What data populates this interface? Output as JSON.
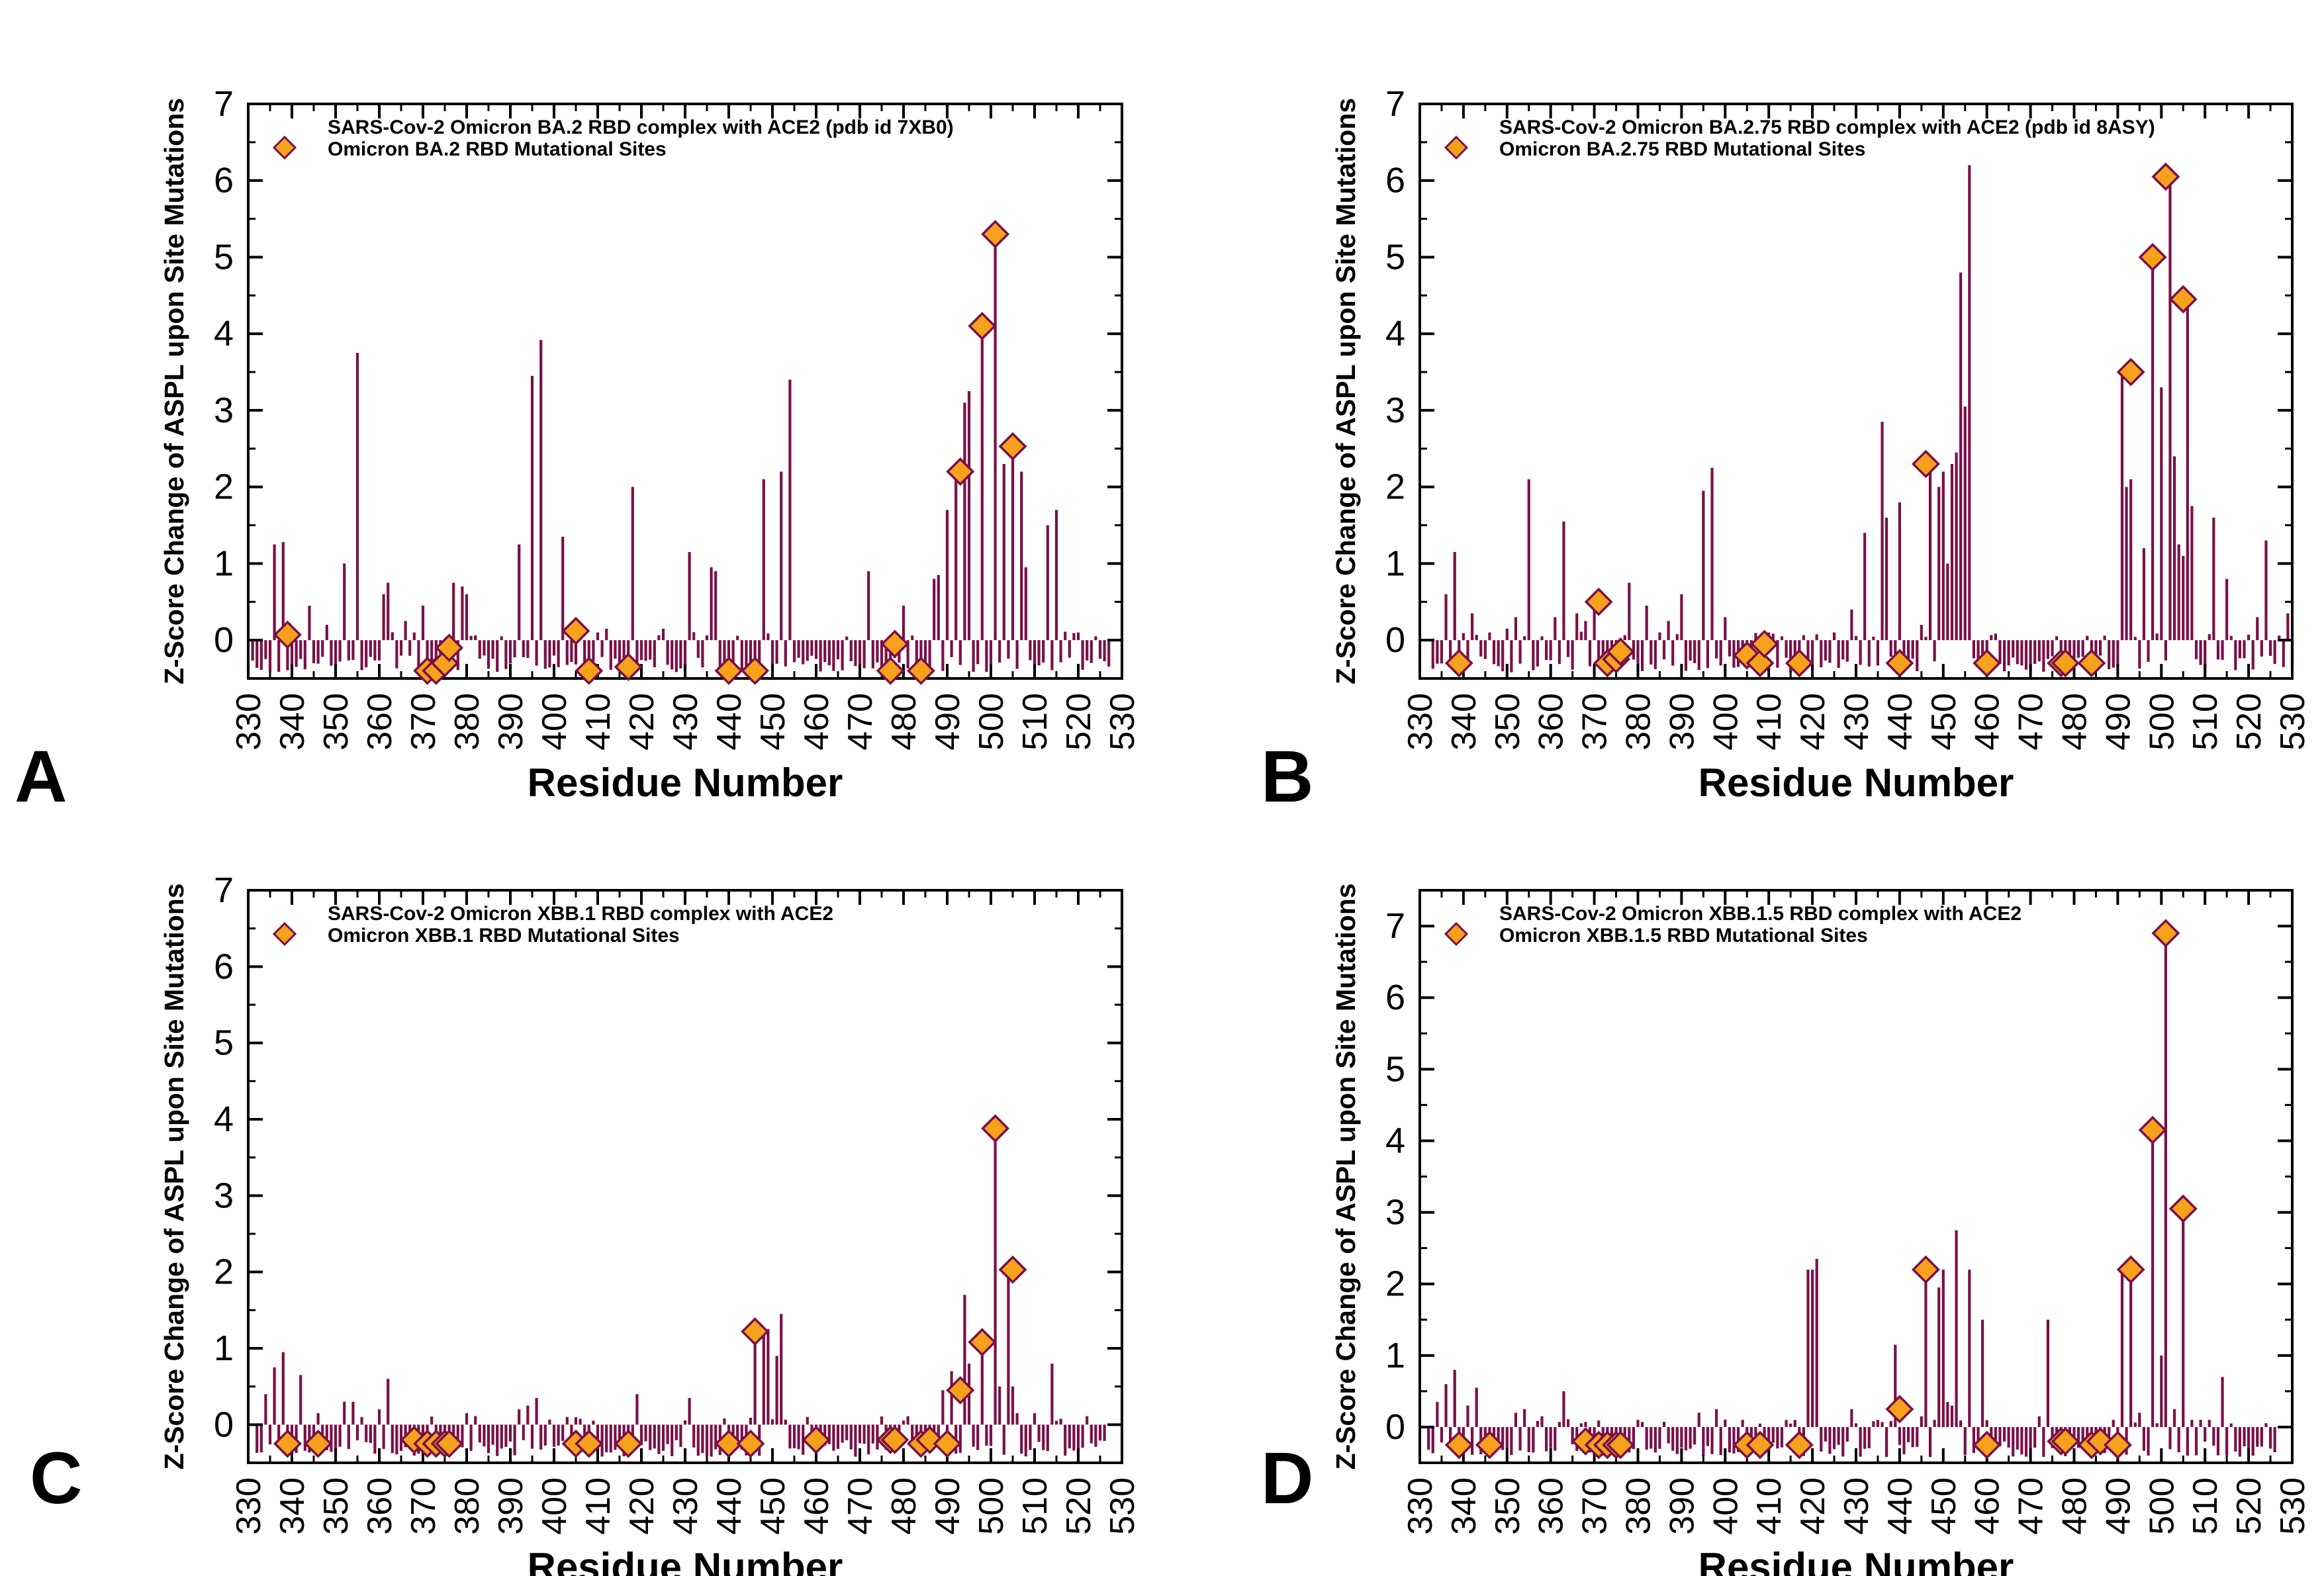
{
  "panel_labels": [
    "A",
    "B",
    "C",
    "D"
  ],
  "colors": {
    "stem": "#7a1048",
    "marker_fill": "#f5a11c",
    "marker_edge": "#7a1048",
    "axis": "#000000"
  },
  "chart_data": [
    {
      "panel": "A",
      "type": "bar",
      "title": "",
      "xlabel": "Residue Number",
      "ylabel": "Z-Score Change of ASPL upon Site Mutations",
      "xlim": [
        330,
        530
      ],
      "ylim": [
        -0.5,
        7
      ],
      "xticks": [
        330,
        340,
        350,
        360,
        370,
        380,
        390,
        400,
        410,
        420,
        430,
        440,
        450,
        460,
        470,
        480,
        490,
        500,
        510,
        520,
        530
      ],
      "yticks": [
        0,
        1,
        2,
        3,
        4,
        5,
        6,
        7
      ],
      "legend": [
        "SARS-Cov-2  Omicron BA.2 RBD complex with ACE2 (pdb id 7XB0)",
        "Omicron BA.2 RBD Mutational Sites"
      ],
      "legend_position": "top-left",
      "residue_range": [
        331,
        527
      ],
      "peaks": [
        [
          336,
          1.25
        ],
        [
          338,
          1.28
        ],
        [
          344,
          0.45
        ],
        [
          348,
          0.2
        ],
        [
          352,
          1.0
        ],
        [
          355,
          3.75
        ],
        [
          361,
          0.6
        ],
        [
          362,
          0.75
        ],
        [
          366,
          0.25
        ],
        [
          368,
          0.1
        ],
        [
          370,
          0.45
        ],
        [
          377,
          0.75
        ],
        [
          379,
          0.7
        ],
        [
          380,
          0.6
        ],
        [
          388,
          0.05
        ],
        [
          392,
          1.25
        ],
        [
          395,
          3.45
        ],
        [
          397,
          3.92
        ],
        [
          402,
          1.35
        ],
        [
          410,
          0.1
        ],
        [
          412,
          0.15
        ],
        [
          418,
          2.0
        ],
        [
          425,
          0.15
        ],
        [
          431,
          1.15
        ],
        [
          436,
          0.95
        ],
        [
          437,
          0.9
        ],
        [
          448,
          2.1
        ],
        [
          452,
          2.2
        ],
        [
          454,
          3.4
        ],
        [
          472,
          0.9
        ],
        [
          480,
          0.45
        ],
        [
          487,
          0.8
        ],
        [
          488,
          0.85
        ],
        [
          490,
          1.7
        ],
        [
          492,
          2.2
        ],
        [
          494,
          3.1
        ],
        [
          495,
          3.25
        ],
        [
          498,
          4.1
        ],
        [
          501,
          5.3
        ],
        [
          503,
          2.3
        ],
        [
          505,
          2.5
        ],
        [
          507,
          2.2
        ],
        [
          508,
          0.95
        ],
        [
          513,
          1.5
        ],
        [
          515,
          1.7
        ],
        [
          520,
          0.1
        ],
        [
          524,
          0.05
        ]
      ],
      "sites": [
        [
          339,
          0.07
        ],
        [
          371,
          -0.4
        ],
        [
          373,
          -0.4
        ],
        [
          375,
          -0.3
        ],
        [
          376,
          -0.1
        ],
        [
          405,
          0.12
        ],
        [
          408,
          -0.4
        ],
        [
          417,
          -0.35
        ],
        [
          440,
          -0.4
        ],
        [
          446,
          -0.4
        ],
        [
          477,
          -0.4
        ],
        [
          478,
          -0.05
        ],
        [
          484,
          -0.4
        ],
        [
          493,
          2.2
        ],
        [
          498,
          4.1
        ],
        [
          501,
          5.3
        ],
        [
          505,
          2.53
        ]
      ]
    },
    {
      "panel": "B",
      "type": "bar",
      "title": "",
      "xlabel": "Residue Number",
      "ylabel": "Z-Score Change of ASPL upon Site Mutations",
      "xlim": [
        330,
        530
      ],
      "ylim": [
        -0.5,
        7
      ],
      "xticks": [
        330,
        340,
        350,
        360,
        370,
        380,
        390,
        400,
        410,
        420,
        430,
        440,
        450,
        460,
        470,
        480,
        490,
        500,
        510,
        520,
        530
      ],
      "yticks": [
        0,
        1,
        2,
        3,
        4,
        5,
        6,
        7
      ],
      "legend": [
        "SARS-Cov-2  Omicron BA.2.75 RBD complex with ACE2 (pdb id 8ASY)",
        "Omicron BA.2.75 RBD Mutational Sites"
      ],
      "legend_position": "top-left",
      "residue_range": [
        333,
        530
      ],
      "peaks": [
        [
          336,
          0.6
        ],
        [
          338,
          1.15
        ],
        [
          342,
          0.35
        ],
        [
          346,
          0.1
        ],
        [
          350,
          0.15
        ],
        [
          352,
          0.3
        ],
        [
          355,
          2.1
        ],
        [
          358,
          0.05
        ],
        [
          361,
          0.3
        ],
        [
          363,
          1.55
        ],
        [
          366,
          0.35
        ],
        [
          368,
          0.25
        ],
        [
          370,
          0.6
        ],
        [
          378,
          0.75
        ],
        [
          382,
          0.45
        ],
        [
          385,
          0.1
        ],
        [
          387,
          0.25
        ],
        [
          390,
          0.6
        ],
        [
          395,
          1.95
        ],
        [
          397,
          2.25
        ],
        [
          400,
          0.3
        ],
        [
          410,
          0.1
        ],
        [
          413,
          0.05
        ],
        [
          425,
          0.1
        ],
        [
          429,
          0.4
        ],
        [
          432,
          1.4
        ],
        [
          436,
          2.85
        ],
        [
          437,
          1.6
        ],
        [
          440,
          1.8
        ],
        [
          445,
          0.2
        ],
        [
          447,
          2.3
        ],
        [
          449,
          2.0
        ],
        [
          450,
          2.2
        ],
        [
          451,
          1.0
        ],
        [
          452,
          2.3
        ],
        [
          453,
          2.45
        ],
        [
          454,
          4.8
        ],
        [
          455,
          3.05
        ],
        [
          456,
          6.2
        ],
        [
          491,
          3.5
        ],
        [
          492,
          2.0
        ],
        [
          493,
          2.1
        ],
        [
          496,
          1.2
        ],
        [
          498,
          5.0
        ],
        [
          500,
          3.3
        ],
        [
          502,
          6.05
        ],
        [
          503,
          2.4
        ],
        [
          504,
          1.25
        ],
        [
          505,
          1.1
        ],
        [
          506,
          4.45
        ],
        [
          507,
          1.75
        ],
        [
          512,
          1.6
        ],
        [
          515,
          0.8
        ],
        [
          522,
          0.3
        ],
        [
          524,
          1.3
        ],
        [
          529,
          0.35
        ]
      ],
      "sites": [
        [
          339,
          -0.3
        ],
        [
          371,
          0.5
        ],
        [
          373,
          -0.3
        ],
        [
          375,
          -0.25
        ],
        [
          376,
          -0.15
        ],
        [
          405,
          -0.2
        ],
        [
          408,
          -0.3
        ],
        [
          409,
          -0.05
        ],
        [
          417,
          -0.3
        ],
        [
          440,
          -0.3
        ],
        [
          446,
          2.3
        ],
        [
          460,
          -0.3
        ],
        [
          477,
          -0.3
        ],
        [
          478,
          -0.3
        ],
        [
          484,
          -0.3
        ],
        [
          493,
          3.5
        ],
        [
          498,
          5.0
        ],
        [
          501,
          6.05
        ],
        [
          505,
          4.45
        ]
      ]
    },
    {
      "panel": "C",
      "type": "bar",
      "title": "",
      "xlabel": "Residue Number",
      "ylabel": "Z-Score Change of ASPL upon Site Mutations",
      "xlim": [
        330,
        530
      ],
      "ylim": [
        -0.5,
        7
      ],
      "xticks": [
        330,
        340,
        350,
        360,
        370,
        380,
        390,
        400,
        410,
        420,
        430,
        440,
        450,
        460,
        470,
        480,
        490,
        500,
        510,
        520,
        530
      ],
      "yticks": [
        0,
        1,
        2,
        3,
        4,
        5,
        6,
        7
      ],
      "legend": [
        "SARS-Cov-2  Omicron XBB.1 RBD complex with ACE2",
        "Omicron XBB.1 RBD Mutational Sites"
      ],
      "legend_position": "top-left",
      "residue_range": [
        332,
        526
      ],
      "peaks": [
        [
          334,
          0.4
        ],
        [
          336,
          0.75
        ],
        [
          338,
          0.95
        ],
        [
          342,
          0.65
        ],
        [
          346,
          0.15
        ],
        [
          352,
          0.3
        ],
        [
          354,
          0.3
        ],
        [
          356,
          0.1
        ],
        [
          360,
          0.2
        ],
        [
          362,
          0.6
        ],
        [
          380,
          0.15
        ],
        [
          392,
          0.2
        ],
        [
          394,
          0.25
        ],
        [
          396,
          0.35
        ],
        [
          403,
          0.1
        ],
        [
          419,
          0.4
        ],
        [
          431,
          0.35
        ],
        [
          446,
          1.25
        ],
        [
          448,
          1.2
        ],
        [
          449,
          1.25
        ],
        [
          451,
          0.9
        ],
        [
          452,
          1.45
        ],
        [
          458,
          0.1
        ],
        [
          489,
          0.45
        ],
        [
          491,
          0.7
        ],
        [
          494,
          1.7
        ],
        [
          495,
          0.8
        ],
        [
          498,
          1.1
        ],
        [
          501,
          3.9
        ],
        [
          502,
          0.5
        ],
        [
          504,
          2.05
        ],
        [
          505,
          0.5
        ],
        [
          506,
          0.15
        ],
        [
          510,
          0.15
        ],
        [
          514,
          0.8
        ]
      ],
      "sites": [
        [
          339,
          -0.25
        ],
        [
          346,
          -0.25
        ],
        [
          368,
          -0.2
        ],
        [
          371,
          -0.25
        ],
        [
          373,
          -0.25
        ],
        [
          375,
          -0.25
        ],
        [
          376,
          -0.25
        ],
        [
          405,
          -0.25
        ],
        [
          408,
          -0.25
        ],
        [
          417,
          -0.25
        ],
        [
          440,
          -0.25
        ],
        [
          445,
          -0.25
        ],
        [
          446,
          1.22
        ],
        [
          460,
          -0.2
        ],
        [
          477,
          -0.2
        ],
        [
          478,
          -0.2
        ],
        [
          484,
          -0.25
        ],
        [
          486,
          -0.2
        ],
        [
          490,
          -0.25
        ],
        [
          493,
          0.45
        ],
        [
          498,
          1.08
        ],
        [
          501,
          3.88
        ],
        [
          505,
          2.03
        ]
      ]
    },
    {
      "panel": "D",
      "type": "bar",
      "title": "",
      "xlabel": "Residue Number",
      "ylabel": "Z-Score Change of ASPL upon Site Mutations",
      "xlim": [
        330,
        530
      ],
      "ylim": [
        -0.5,
        7.5
      ],
      "xticks": [
        330,
        340,
        350,
        360,
        370,
        380,
        390,
        400,
        410,
        420,
        430,
        440,
        450,
        460,
        470,
        480,
        490,
        500,
        510,
        520,
        530
      ],
      "yticks": [
        0,
        1,
        2,
        3,
        4,
        5,
        6,
        7
      ],
      "legend": [
        "SARS-Cov-2  Omicron XBB.1.5 RBD complex with ACE2",
        "Omicron XBB.1.5 RBD Mutational Sites"
      ],
      "legend_position": "top-left",
      "residue_range": [
        332,
        526
      ],
      "peaks": [
        [
          334,
          0.35
        ],
        [
          336,
          0.6
        ],
        [
          338,
          0.8
        ],
        [
          341,
          0.3
        ],
        [
          343,
          0.55
        ],
        [
          352,
          0.2
        ],
        [
          354,
          0.25
        ],
        [
          358,
          0.15
        ],
        [
          363,
          0.5
        ],
        [
          380,
          0.1
        ],
        [
          394,
          0.2
        ],
        [
          398,
          0.25
        ],
        [
          404,
          0.1
        ],
        [
          419,
          2.2
        ],
        [
          420,
          2.2
        ],
        [
          421,
          2.35
        ],
        [
          429,
          0.25
        ],
        [
          435,
          0.1
        ],
        [
          439,
          1.15
        ],
        [
          445,
          0.15
        ],
        [
          446,
          2.2
        ],
        [
          448,
          0.1
        ],
        [
          449,
          1.95
        ],
        [
          450,
          2.2
        ],
        [
          451,
          0.35
        ],
        [
          452,
          0.3
        ],
        [
          453,
          2.75
        ],
        [
          456,
          2.2
        ],
        [
          459,
          1.5
        ],
        [
          472,
          0.15
        ],
        [
          474,
          1.5
        ],
        [
          489,
          0.1
        ],
        [
          491,
          2.2
        ],
        [
          493,
          2.2
        ],
        [
          495,
          0.2
        ],
        [
          498,
          4.15
        ],
        [
          500,
          1.0
        ],
        [
          501,
          6.9
        ],
        [
          503,
          0.25
        ],
        [
          505,
          3.05
        ],
        [
          507,
          0.1
        ],
        [
          509,
          0.1
        ],
        [
          511,
          0.1
        ],
        [
          514,
          0.7
        ],
        [
          516,
          0.05
        ]
      ],
      "sites": [
        [
          339,
          -0.25
        ],
        [
          346,
          -0.25
        ],
        [
          368,
          -0.2
        ],
        [
          371,
          -0.25
        ],
        [
          373,
          -0.25
        ],
        [
          375,
          -0.25
        ],
        [
          376,
          -0.25
        ],
        [
          405,
          -0.25
        ],
        [
          408,
          -0.25
        ],
        [
          417,
          -0.25
        ],
        [
          440,
          0.25
        ],
        [
          446,
          2.2
        ],
        [
          460,
          -0.25
        ],
        [
          477,
          -0.2
        ],
        [
          478,
          -0.2
        ],
        [
          484,
          -0.25
        ],
        [
          486,
          -0.2
        ],
        [
          490,
          -0.25
        ],
        [
          493,
          2.2
        ],
        [
          498,
          4.15
        ],
        [
          501,
          6.9
        ],
        [
          505,
          3.05
        ]
      ]
    }
  ]
}
